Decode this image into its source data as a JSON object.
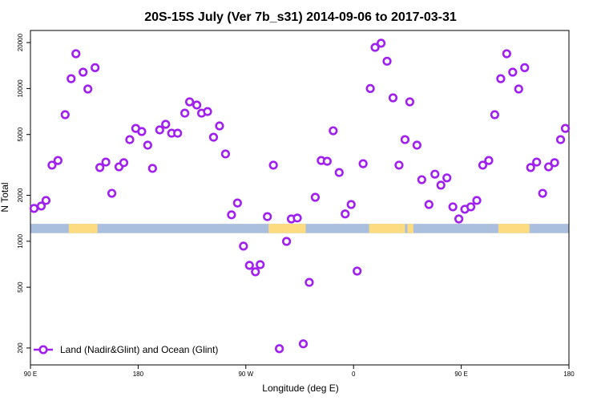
{
  "chart_data": {
    "type": "scatter",
    "title": "20S-15S July (Ver 7b_s31)   2014-09-06 to 2017-03-31",
    "x_label": "Longitude (deg E)",
    "y_label": "N Total",
    "log_y": true,
    "legend_position": "bottom-left",
    "xlim": [
      90,
      540
    ],
    "ylim": [
      155,
      24000
    ],
    "xticks": [
      {
        "value": 90,
        "label": "90 E"
      },
      {
        "value": 180,
        "label": "180"
      },
      {
        "value": 270,
        "label": "90 W"
      },
      {
        "value": 360,
        "label": "0"
      },
      {
        "value": 450,
        "label": "90 E"
      },
      {
        "value": 540,
        "label": "180"
      }
    ],
    "yticks": [
      200,
      500,
      1000,
      2000,
      5000,
      10000,
      20000
    ],
    "strip": {
      "ylim": [
        1130,
        1300
      ],
      "ocean_color": "#a9bfdd",
      "land_color": "#fddb80",
      "land_ranges": [
        [
          122,
          146
        ],
        [
          289,
          320
        ],
        [
          373,
          403
        ],
        [
          405,
          410
        ],
        [
          481,
          507
        ]
      ]
    },
    "series": [
      {
        "name": "Land (Nadir&Glint) and Ocean (Glint)",
        "color": "#a020f0",
        "x": [
          93,
          99,
          103,
          108,
          113,
          119,
          124,
          128,
          134,
          138,
          144,
          148,
          153,
          158,
          164,
          168,
          173,
          178,
          183,
          188,
          192,
          198,
          203,
          208,
          213,
          219,
          223,
          229,
          233,
          238,
          243,
          248,
          253,
          258,
          263,
          268,
          273,
          278,
          282,
          288,
          293,
          298,
          304,
          308,
          313,
          318,
          323,
          328,
          333,
          338,
          343,
          348,
          353,
          358,
          363,
          368,
          374,
          378,
          383,
          388,
          393,
          398,
          403,
          407,
          413,
          417,
          423,
          428,
          433,
          438,
          443,
          448,
          453,
          458,
          463,
          468,
          473,
          478,
          483,
          488,
          493,
          498,
          503,
          508,
          513,
          518,
          523,
          528,
          533,
          537
        ],
        "values": [
          1640,
          1700,
          1850,
          3150,
          3380,
          6740,
          11600,
          16900,
          12800,
          9930,
          13700,
          3040,
          3300,
          2060,
          3070,
          3270,
          4630,
          5480,
          5230,
          4260,
          3000,
          5360,
          5830,
          5100,
          5100,
          6900,
          8180,
          7800,
          6900,
          7070,
          4800,
          5690,
          3730,
          1490,
          1780,
          929,
          695,
          631,
          703,
          1450,
          3150,
          198,
          998,
          1400,
          1420,
          213,
          538,
          1940,
          3380,
          3340,
          5290,
          2820,
          1510,
          1740,
          638,
          3220,
          10000,
          18600,
          19800,
          15100,
          8690,
          3150,
          4630,
          8180,
          4260,
          2530,
          1740,
          2750,
          2330,
          2600,
          1680,
          1400,
          1620,
          1680,
          1850,
          3150,
          3380,
          6740,
          11600,
          16900,
          12800,
          9930,
          13700,
          3040,
          3300,
          2060,
          3070,
          3270,
          4630,
          5480
        ]
      }
    ]
  }
}
